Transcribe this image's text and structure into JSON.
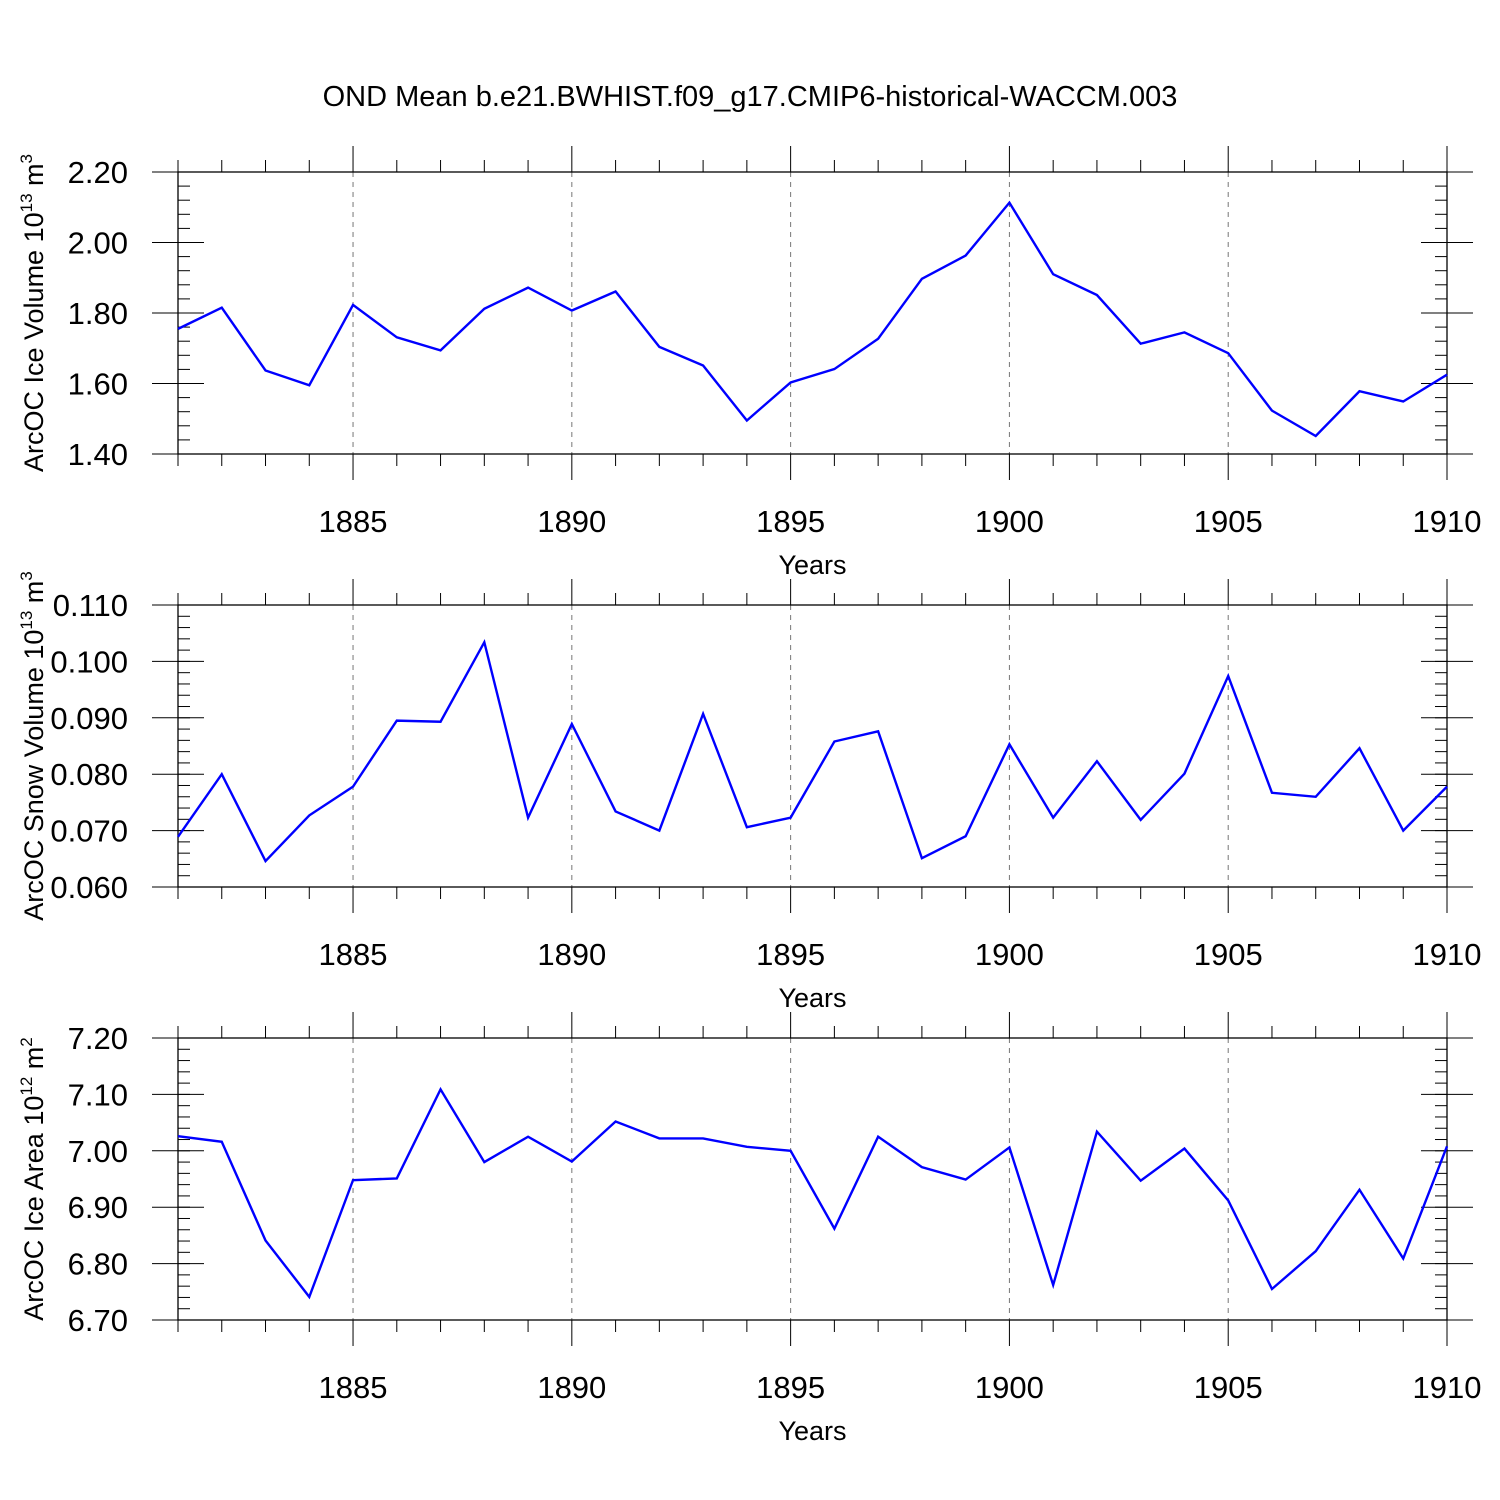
{
  "title": "OND Mean b.e21.BWHIST.f09_g17.CMIP6-historical-WACCM.003",
  "colors": {
    "series": "#0000ff",
    "grid": "#777777",
    "axis": "#000000"
  },
  "chart_data": [
    {
      "type": "line",
      "title": "",
      "xlabel": "Years",
      "ylabel": {
        "text": "ArcOC Ice Volume 10",
        "exp": "13",
        "unit": " m",
        "unit_exp": "3"
      },
      "xlim": [
        1881,
        1910
      ],
      "ylim": [
        1.4,
        2.2
      ],
      "grid": "vertical dashed at major x ticks",
      "x_ticks": [
        1885,
        1890,
        1895,
        1900,
        1905,
        1910
      ],
      "x_tick_labels": [
        "1885",
        "1890",
        "1895",
        "1900",
        "1905",
        "1910"
      ],
      "y_ticks": [
        1.4,
        1.6,
        1.8,
        2.0,
        2.2
      ],
      "y_tick_labels": [
        "1.40",
        "1.60",
        "1.80",
        "2.00",
        "2.20"
      ],
      "y_minor_step": 0.04,
      "x": [
        1881,
        1882,
        1883,
        1884,
        1885,
        1886,
        1887,
        1888,
        1889,
        1890,
        1891,
        1892,
        1893,
        1894,
        1895,
        1896,
        1897,
        1898,
        1899,
        1900,
        1901,
        1902,
        1903,
        1904,
        1905,
        1906,
        1907,
        1908,
        1909,
        1910
      ],
      "series": [
        {
          "values": [
            1.755,
            1.815,
            1.637,
            1.595,
            1.823,
            1.731,
            1.694,
            1.812,
            1.872,
            1.807,
            1.861,
            1.704,
            1.651,
            1.495,
            1.603,
            1.641,
            1.727,
            1.897,
            1.963,
            2.113,
            1.91,
            1.851,
            1.713,
            1.745,
            1.686,
            1.523,
            1.451,
            1.578,
            1.549,
            1.625
          ]
        }
      ]
    },
    {
      "type": "line",
      "title": "",
      "xlabel": "Years",
      "ylabel": {
        "text": "ArcOC Snow Volume 10",
        "exp": "13",
        "unit": " m",
        "unit_exp": "3"
      },
      "xlim": [
        1881,
        1910
      ],
      "ylim": [
        0.06,
        0.11
      ],
      "grid": "vertical dashed at major x ticks",
      "x_ticks": [
        1885,
        1890,
        1895,
        1900,
        1905,
        1910
      ],
      "x_tick_labels": [
        "1885",
        "1890",
        "1895",
        "1900",
        "1905",
        "1910"
      ],
      "y_ticks": [
        0.06,
        0.07,
        0.08,
        0.09,
        0.1,
        0.11
      ],
      "y_tick_labels": [
        "0.060",
        "0.070",
        "0.080",
        "0.090",
        "0.100",
        "0.110"
      ],
      "y_minor_step": 0.002,
      "x": [
        1881,
        1882,
        1883,
        1884,
        1885,
        1886,
        1887,
        1888,
        1889,
        1890,
        1891,
        1892,
        1893,
        1894,
        1895,
        1896,
        1897,
        1898,
        1899,
        1900,
        1901,
        1902,
        1903,
        1904,
        1905,
        1906,
        1907,
        1908,
        1909,
        1910
      ],
      "series": [
        {
          "values": [
            0.0689,
            0.08,
            0.0646,
            0.0727,
            0.0778,
            0.0895,
            0.0893,
            0.1034,
            0.0723,
            0.0889,
            0.0734,
            0.07,
            0.0907,
            0.0706,
            0.0723,
            0.0858,
            0.0876,
            0.0651,
            0.069,
            0.0853,
            0.0723,
            0.0823,
            0.0719,
            0.0801,
            0.0974,
            0.0767,
            0.076,
            0.0846,
            0.07,
            0.0778
          ]
        }
      ]
    },
    {
      "type": "line",
      "title": "",
      "xlabel": "Years",
      "ylabel": {
        "text": "ArcOC Ice Area 10",
        "exp": "12",
        "unit": " m",
        "unit_exp": "2"
      },
      "xlim": [
        1881,
        1910
      ],
      "ylim": [
        6.7,
        7.2
      ],
      "grid": "vertical dashed at major x ticks",
      "x_ticks": [
        1885,
        1890,
        1895,
        1900,
        1905,
        1910
      ],
      "x_tick_labels": [
        "1885",
        "1890",
        "1895",
        "1900",
        "1905",
        "1910"
      ],
      "y_ticks": [
        6.7,
        6.8,
        6.9,
        7.0,
        7.1,
        7.2
      ],
      "y_tick_labels": [
        "6.70",
        "6.80",
        "6.90",
        "7.00",
        "7.10",
        "7.20"
      ],
      "y_minor_step": 0.02,
      "x": [
        1881,
        1882,
        1883,
        1884,
        1885,
        1886,
        1887,
        1888,
        1889,
        1890,
        1891,
        1892,
        1893,
        1894,
        1895,
        1896,
        1897,
        1898,
        1899,
        1900,
        1901,
        1902,
        1903,
        1904,
        1905,
        1906,
        1907,
        1908,
        1909,
        1910
      ],
      "series": [
        {
          "values": [
            7.026,
            7.016,
            6.841,
            6.741,
            6.948,
            6.951,
            7.109,
            6.98,
            7.025,
            6.981,
            7.052,
            7.022,
            7.022,
            7.007,
            7.0,
            6.862,
            7.025,
            6.971,
            6.949,
            7.006,
            6.762,
            7.034,
            6.947,
            7.004,
            6.912,
            6.755,
            6.822,
            6.931,
            6.809,
            7.008
          ]
        }
      ]
    }
  ]
}
